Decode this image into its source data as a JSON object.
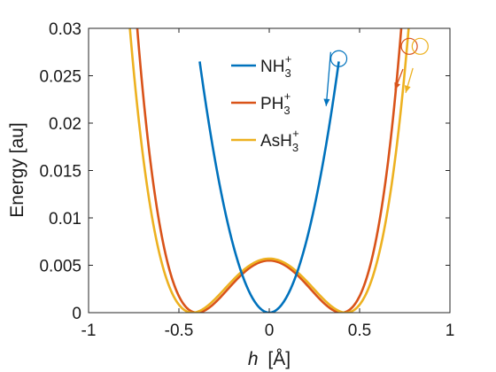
{
  "chart_data": {
    "type": "line",
    "xlabel_italic": "h",
    "xlabel_unit": "[Å]",
    "ylabel": "Energy [au]",
    "xlim": [
      -1,
      1
    ],
    "ylim": [
      0,
      0.03
    ],
    "xticks": [
      -1,
      -0.5,
      0,
      0.5,
      1
    ],
    "xtick_labels": [
      "-1",
      "-0.5",
      "0",
      "0.5",
      "1"
    ],
    "yticks": [
      0,
      0.005,
      0.01,
      0.015,
      0.02,
      0.025,
      0.03
    ],
    "ytick_labels": [
      "0",
      "0.005",
      "0.01",
      "0.015",
      "0.02",
      "0.025",
      "0.03"
    ],
    "grid": false,
    "legend_position": "top-center",
    "series": [
      {
        "name": "NH3+",
        "legend_base": "NH",
        "legend_sub": "3",
        "legend_sup": "+",
        "color": "#0072BD",
        "model": "harmonic",
        "k": 0.1788,
        "x_range": [
          -0.385,
          0.385
        ],
        "marker": {
          "x": 0.385,
          "y": 0.0268
        },
        "arrow": {
          "from": [
            0.34,
            0.0275
          ],
          "to": [
            0.315,
            0.0218
          ]
        }
      },
      {
        "name": "PH3+",
        "legend_base": "PH",
        "legend_sub": "3",
        "legend_sup": "+",
        "color": "#D95319",
        "model": "double-well",
        "barrier": 0.0055,
        "x0": 0.4,
        "x_range": [
          -0.755,
          0.775
        ],
        "marker": {
          "x": 0.775,
          "y": 0.0281
        },
        "arrow": {
          "from": [
            0.74,
            0.0257
          ],
          "to": [
            0.695,
            0.0235
          ]
        }
      },
      {
        "name": "AsH3+",
        "legend_base": "AsH",
        "legend_sub": "3",
        "legend_sup": "+",
        "color": "#EDB120",
        "model": "double-well",
        "barrier": 0.0057,
        "x0": 0.425,
        "x_range": [
          -0.815,
          0.835
        ],
        "marker": {
          "x": 0.835,
          "y": 0.0281
        },
        "arrow": {
          "from": [
            0.795,
            0.0258
          ],
          "to": [
            0.755,
            0.0232
          ]
        }
      }
    ]
  }
}
